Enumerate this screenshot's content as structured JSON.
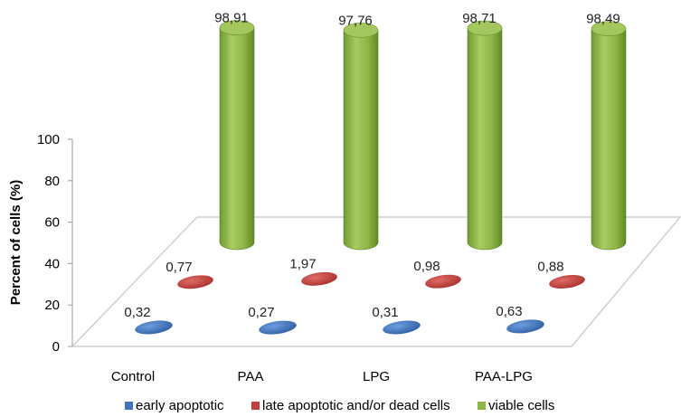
{
  "chart_data": {
    "type": "bar",
    "style": "3d-cylinder",
    "categories": [
      "Control",
      "PAA",
      "LPG",
      "PAA-LPG"
    ],
    "series": [
      {
        "name": "early apoptotic",
        "values": [
          0.32,
          0.27,
          0.31,
          0.63
        ],
        "labels": [
          "0,32",
          "0,27",
          "0,31",
          "0,63"
        ],
        "color": "#3f76bf"
      },
      {
        "name": "late apoptotic and/or dead cells",
        "values": [
          0.77,
          1.97,
          0.98,
          0.88
        ],
        "labels": [
          "0,77",
          "1,97",
          "0,98",
          "0,88"
        ],
        "color": "#c0403d"
      },
      {
        "name": "viable cells",
        "values": [
          98.91,
          97.76,
          98.71,
          98.49
        ],
        "labels": [
          "98,91",
          "97,76",
          "98,71",
          "98,49"
        ],
        "color": "#8fb547"
      }
    ],
    "ylabel": "Percent of cells (%)",
    "ylim": [
      0,
      100
    ],
    "yticks": [
      "0",
      "20",
      "40",
      "60",
      "80",
      "100"
    ],
    "grid": false,
    "legend": "bottom"
  }
}
